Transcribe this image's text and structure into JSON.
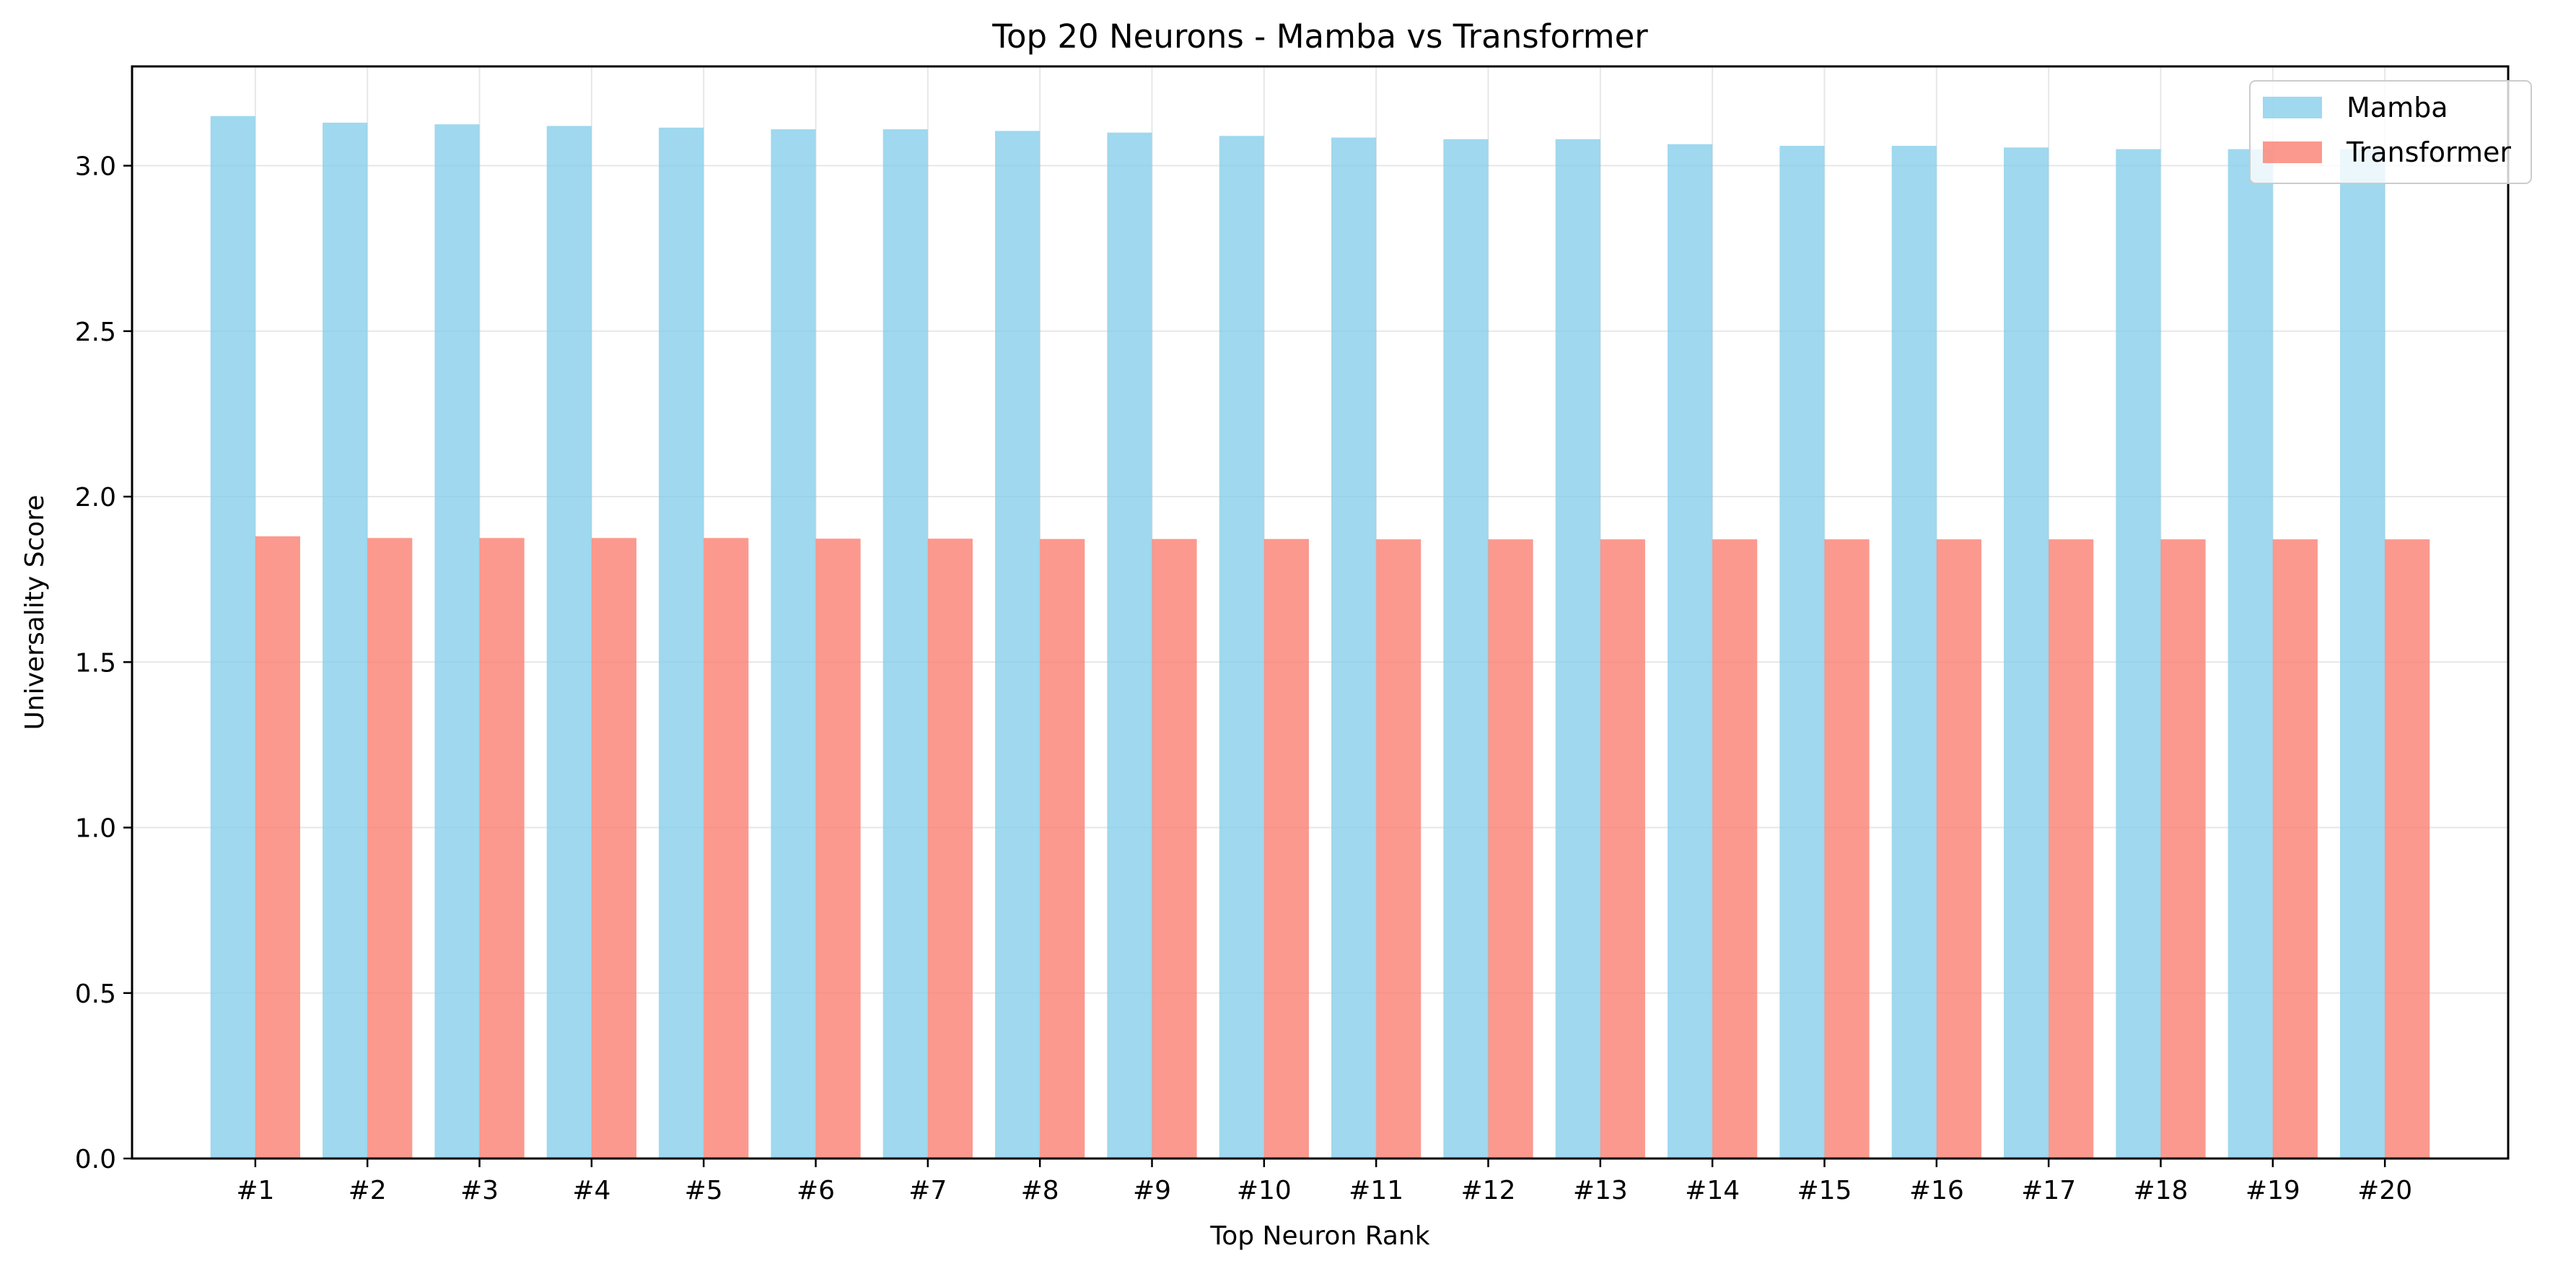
{
  "chart_data": {
    "type": "bar",
    "title": "Top 20 Neurons - Mamba vs Transformer",
    "xlabel": "Top Neuron Rank",
    "ylabel": "Universality Score",
    "ylim": [
      0,
      3.3
    ],
    "yticks": [
      "0.0",
      "0.5",
      "1.0",
      "1.5",
      "2.0",
      "2.5",
      "3.0"
    ],
    "grid": true,
    "legend_position": "top-right",
    "categories": [
      "#1",
      "#2",
      "#3",
      "#4",
      "#5",
      "#6",
      "#7",
      "#8",
      "#9",
      "#10",
      "#11",
      "#12",
      "#13",
      "#14",
      "#15",
      "#16",
      "#17",
      "#18",
      "#19",
      "#20"
    ],
    "series": [
      {
        "name": "Mamba",
        "color": "#87ceeb",
        "values": [
          3.15,
          3.13,
          3.125,
          3.12,
          3.115,
          3.11,
          3.11,
          3.105,
          3.1,
          3.09,
          3.085,
          3.08,
          3.08,
          3.065,
          3.06,
          3.06,
          3.055,
          3.05,
          3.05,
          3.05
        ]
      },
      {
        "name": "Transformer",
        "color": "#fa8072",
        "values": [
          1.88,
          1.875,
          1.875,
          1.875,
          1.875,
          1.873,
          1.873,
          1.872,
          1.872,
          1.872,
          1.871,
          1.871,
          1.871,
          1.871,
          1.871,
          1.871,
          1.871,
          1.871,
          1.871,
          1.871
        ]
      }
    ]
  }
}
